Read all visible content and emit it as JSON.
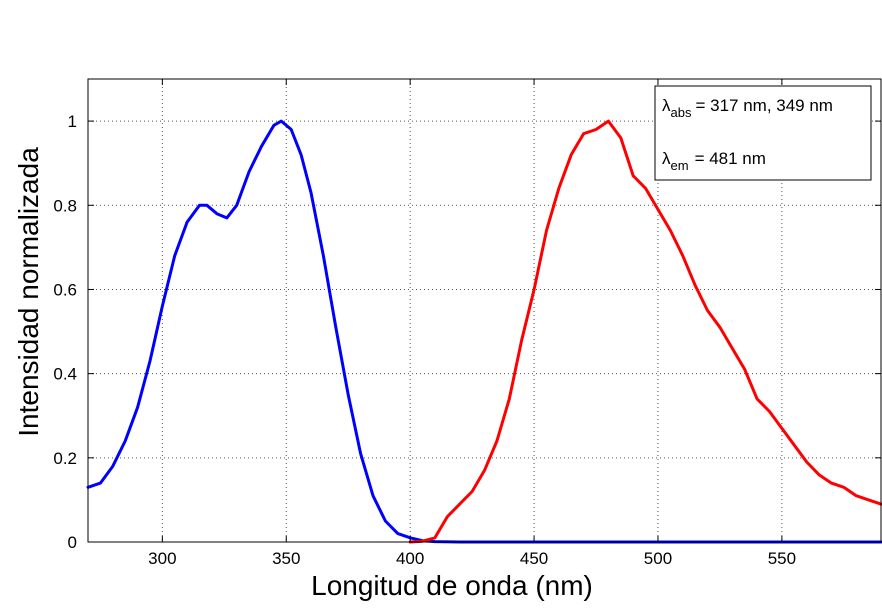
{
  "chart_data": {
    "type": "line",
    "title": "",
    "xlabel": "Longitud de onda (nm)",
    "ylabel": "Intensidad normalizada",
    "xlim": [
      270,
      590
    ],
    "ylim": [
      0,
      1.1
    ],
    "xticks": [
      300,
      350,
      400,
      450,
      500,
      550
    ],
    "yticks": [
      0,
      0.2,
      0.4,
      0.6,
      0.8,
      1
    ],
    "x_tick_labels": [
      "300",
      "350",
      "400",
      "450",
      "500",
      "550"
    ],
    "y_tick_labels": [
      "0",
      "0.2",
      "0.4",
      "0.6",
      "0.8",
      "1"
    ],
    "grid": true,
    "legend_position": "top-right",
    "annotation": {
      "abs_symbol": "λ",
      "abs_sub": "abs",
      "abs_text": "= 317 nm, 349 nm",
      "em_symbol": "λ",
      "em_sub": "em",
      "em_text": "= 481 nm"
    },
    "series": [
      {
        "color": "#0000ff",
        "x": [
          270,
          275,
          280,
          285,
          290,
          295,
          300,
          305,
          310,
          315,
          318,
          322,
          326,
          330,
          335,
          340,
          345,
          348,
          352,
          356,
          360,
          365,
          370,
          375,
          380,
          385,
          390,
          395,
          400,
          405,
          410,
          420,
          450,
          500,
          550,
          590
        ],
        "y": [
          0.13,
          0.14,
          0.18,
          0.24,
          0.32,
          0.43,
          0.56,
          0.68,
          0.76,
          0.8,
          0.8,
          0.78,
          0.77,
          0.8,
          0.88,
          0.94,
          0.99,
          1.0,
          0.98,
          0.92,
          0.83,
          0.68,
          0.51,
          0.35,
          0.21,
          0.11,
          0.05,
          0.02,
          0.01,
          0.003,
          0.001,
          0.0,
          0.0,
          0.0,
          0.0,
          0.0
        ]
      },
      {
        "color": "#ff0000",
        "x": [
          400,
          405,
          410,
          415,
          420,
          425,
          430,
          435,
          440,
          445,
          450,
          455,
          460,
          465,
          470,
          475,
          480,
          485,
          490,
          495,
          500,
          505,
          510,
          515,
          520,
          525,
          530,
          535,
          540,
          545,
          550,
          555,
          560,
          565,
          570,
          575,
          580,
          585,
          590
        ],
        "y": [
          0.0,
          0.002,
          0.01,
          0.06,
          0.09,
          0.12,
          0.17,
          0.24,
          0.34,
          0.48,
          0.6,
          0.74,
          0.84,
          0.92,
          0.97,
          0.98,
          1.0,
          0.96,
          0.87,
          0.84,
          0.79,
          0.74,
          0.68,
          0.61,
          0.55,
          0.51,
          0.46,
          0.41,
          0.34,
          0.31,
          0.27,
          0.23,
          0.19,
          0.16,
          0.14,
          0.13,
          0.11,
          0.1,
          0.09
        ]
      }
    ]
  }
}
